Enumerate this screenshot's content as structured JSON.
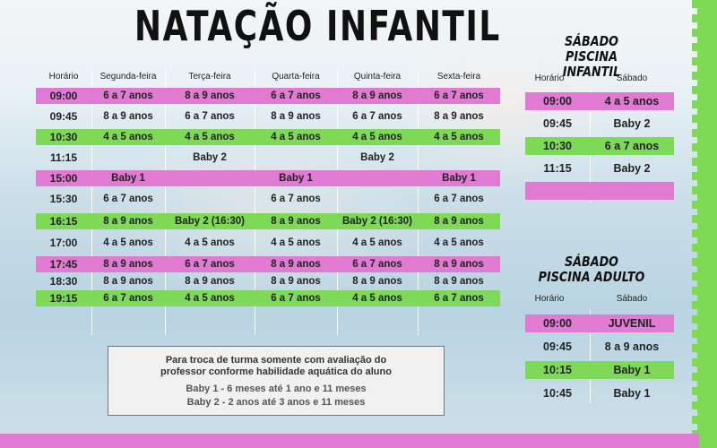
{
  "title": "NATAÇÃO INFANTIL",
  "weekday": {
    "headers": [
      "Horário",
      "Segunda-feira",
      "Terça-feira",
      "Quarta-feira",
      "Quinta-feira",
      "Sexta-feira"
    ],
    "rows": [
      {
        "time": "09:00",
        "color": "pink",
        "cells": [
          "6 a 7 anos",
          "8 a 9 anos",
          "6 a 7 anos",
          "8 a 9 anos",
          "6 a 7 anos"
        ]
      },
      {
        "time": "09:45",
        "color": "none",
        "cells": [
          "8 a 9 anos",
          "6 a 7 anos",
          "8 a 9 anos",
          "6 a 7 anos",
          "8 a 9 anos"
        ]
      },
      {
        "time": "10:30",
        "color": "green",
        "cells": [
          "4 a 5 anos",
          "4 a 5 anos",
          "4 a 5 anos",
          "4 a 5 anos",
          "4 a 5 anos"
        ]
      },
      {
        "time": "11:15",
        "color": "none",
        "cells": [
          "",
          "Baby 2",
          "",
          "Baby 2",
          ""
        ]
      },
      {
        "time": "15:00",
        "color": "pink",
        "cells": [
          "Baby 1",
          "",
          "Baby 1",
          "",
          "Baby 1"
        ]
      },
      {
        "time": "15:30",
        "color": "none",
        "cells": [
          "6 a 7 anos",
          "",
          "6 a 7 anos",
          "",
          "6 a 7 anos"
        ]
      },
      {
        "time": "16:15",
        "color": "green",
        "cells": [
          "8 a 9 anos",
          "Baby 2 (16:30)",
          "8 a 9 anos",
          "Baby 2 (16:30)",
          "8 a 9 anos"
        ]
      },
      {
        "time": "17:00",
        "color": "none",
        "cells": [
          "4 a 5 anos",
          "4 a 5 anos",
          "4 a 5 anos",
          "4 a 5 anos",
          "4 a 5 anos"
        ]
      },
      {
        "time": "17:45",
        "color": "pink",
        "cells": [
          "8 a 9 anos",
          "6 a 7 anos",
          "8 a 9 anos",
          "6 a 7 anos",
          "8 a 9 anos"
        ]
      },
      {
        "time": "18:30",
        "color": "none",
        "cells": [
          "8 a 9 anos",
          "8 a 9 anos",
          "8 a 9 anos",
          "8 a 9 anos",
          "8 a 9 anos"
        ]
      },
      {
        "time": "19:15",
        "color": "green",
        "cells": [
          "6 a 7 anos",
          "4 a 5 anos",
          "6 a 7 anos",
          "4 a 5 anos",
          "6 a 7 anos"
        ]
      }
    ]
  },
  "sat_infantil": {
    "title_line1": "SÁBADO",
    "title_line2": "PISCINA INFANTIL",
    "headers": [
      "Horário",
      "Sábado"
    ],
    "rows": [
      {
        "time": "09:00",
        "value": "4 a 5 anos",
        "color": "pink"
      },
      {
        "time": "09:45",
        "value": "Baby 2",
        "color": "none"
      },
      {
        "time": "10:30",
        "value": "6 a 7 anos",
        "color": "green"
      },
      {
        "time": "11:15",
        "value": "Baby 2",
        "color": "none"
      },
      {
        "time": "",
        "value": "",
        "color": "pink"
      }
    ]
  },
  "sat_adulto": {
    "title_line1": "SÁBADO",
    "title_line2": "PISCINA ADULTO",
    "headers": [
      "Horário",
      "Sábado"
    ],
    "rows": [
      {
        "time": "09:00",
        "value": "JUVENIL",
        "color": "pink"
      },
      {
        "time": "09:45",
        "value": "8 a 9 anos",
        "color": "none"
      },
      {
        "time": "10:15",
        "value": "Baby 1",
        "color": "green"
      },
      {
        "time": "10:45",
        "value": "Baby 1",
        "color": "none"
      }
    ]
  },
  "note": {
    "line1": "Para troca de turma somente com avaliação do",
    "line2": "professor conforme habilidade aquática do aluno",
    "line3": "Baby 1 - 6 meses até 1 ano e 11 meses",
    "line4": "Baby 2 - 2 anos até 3 anos e 11 meses"
  },
  "colors": {
    "pink": "#e07ad3",
    "green": "#7ed957"
  }
}
